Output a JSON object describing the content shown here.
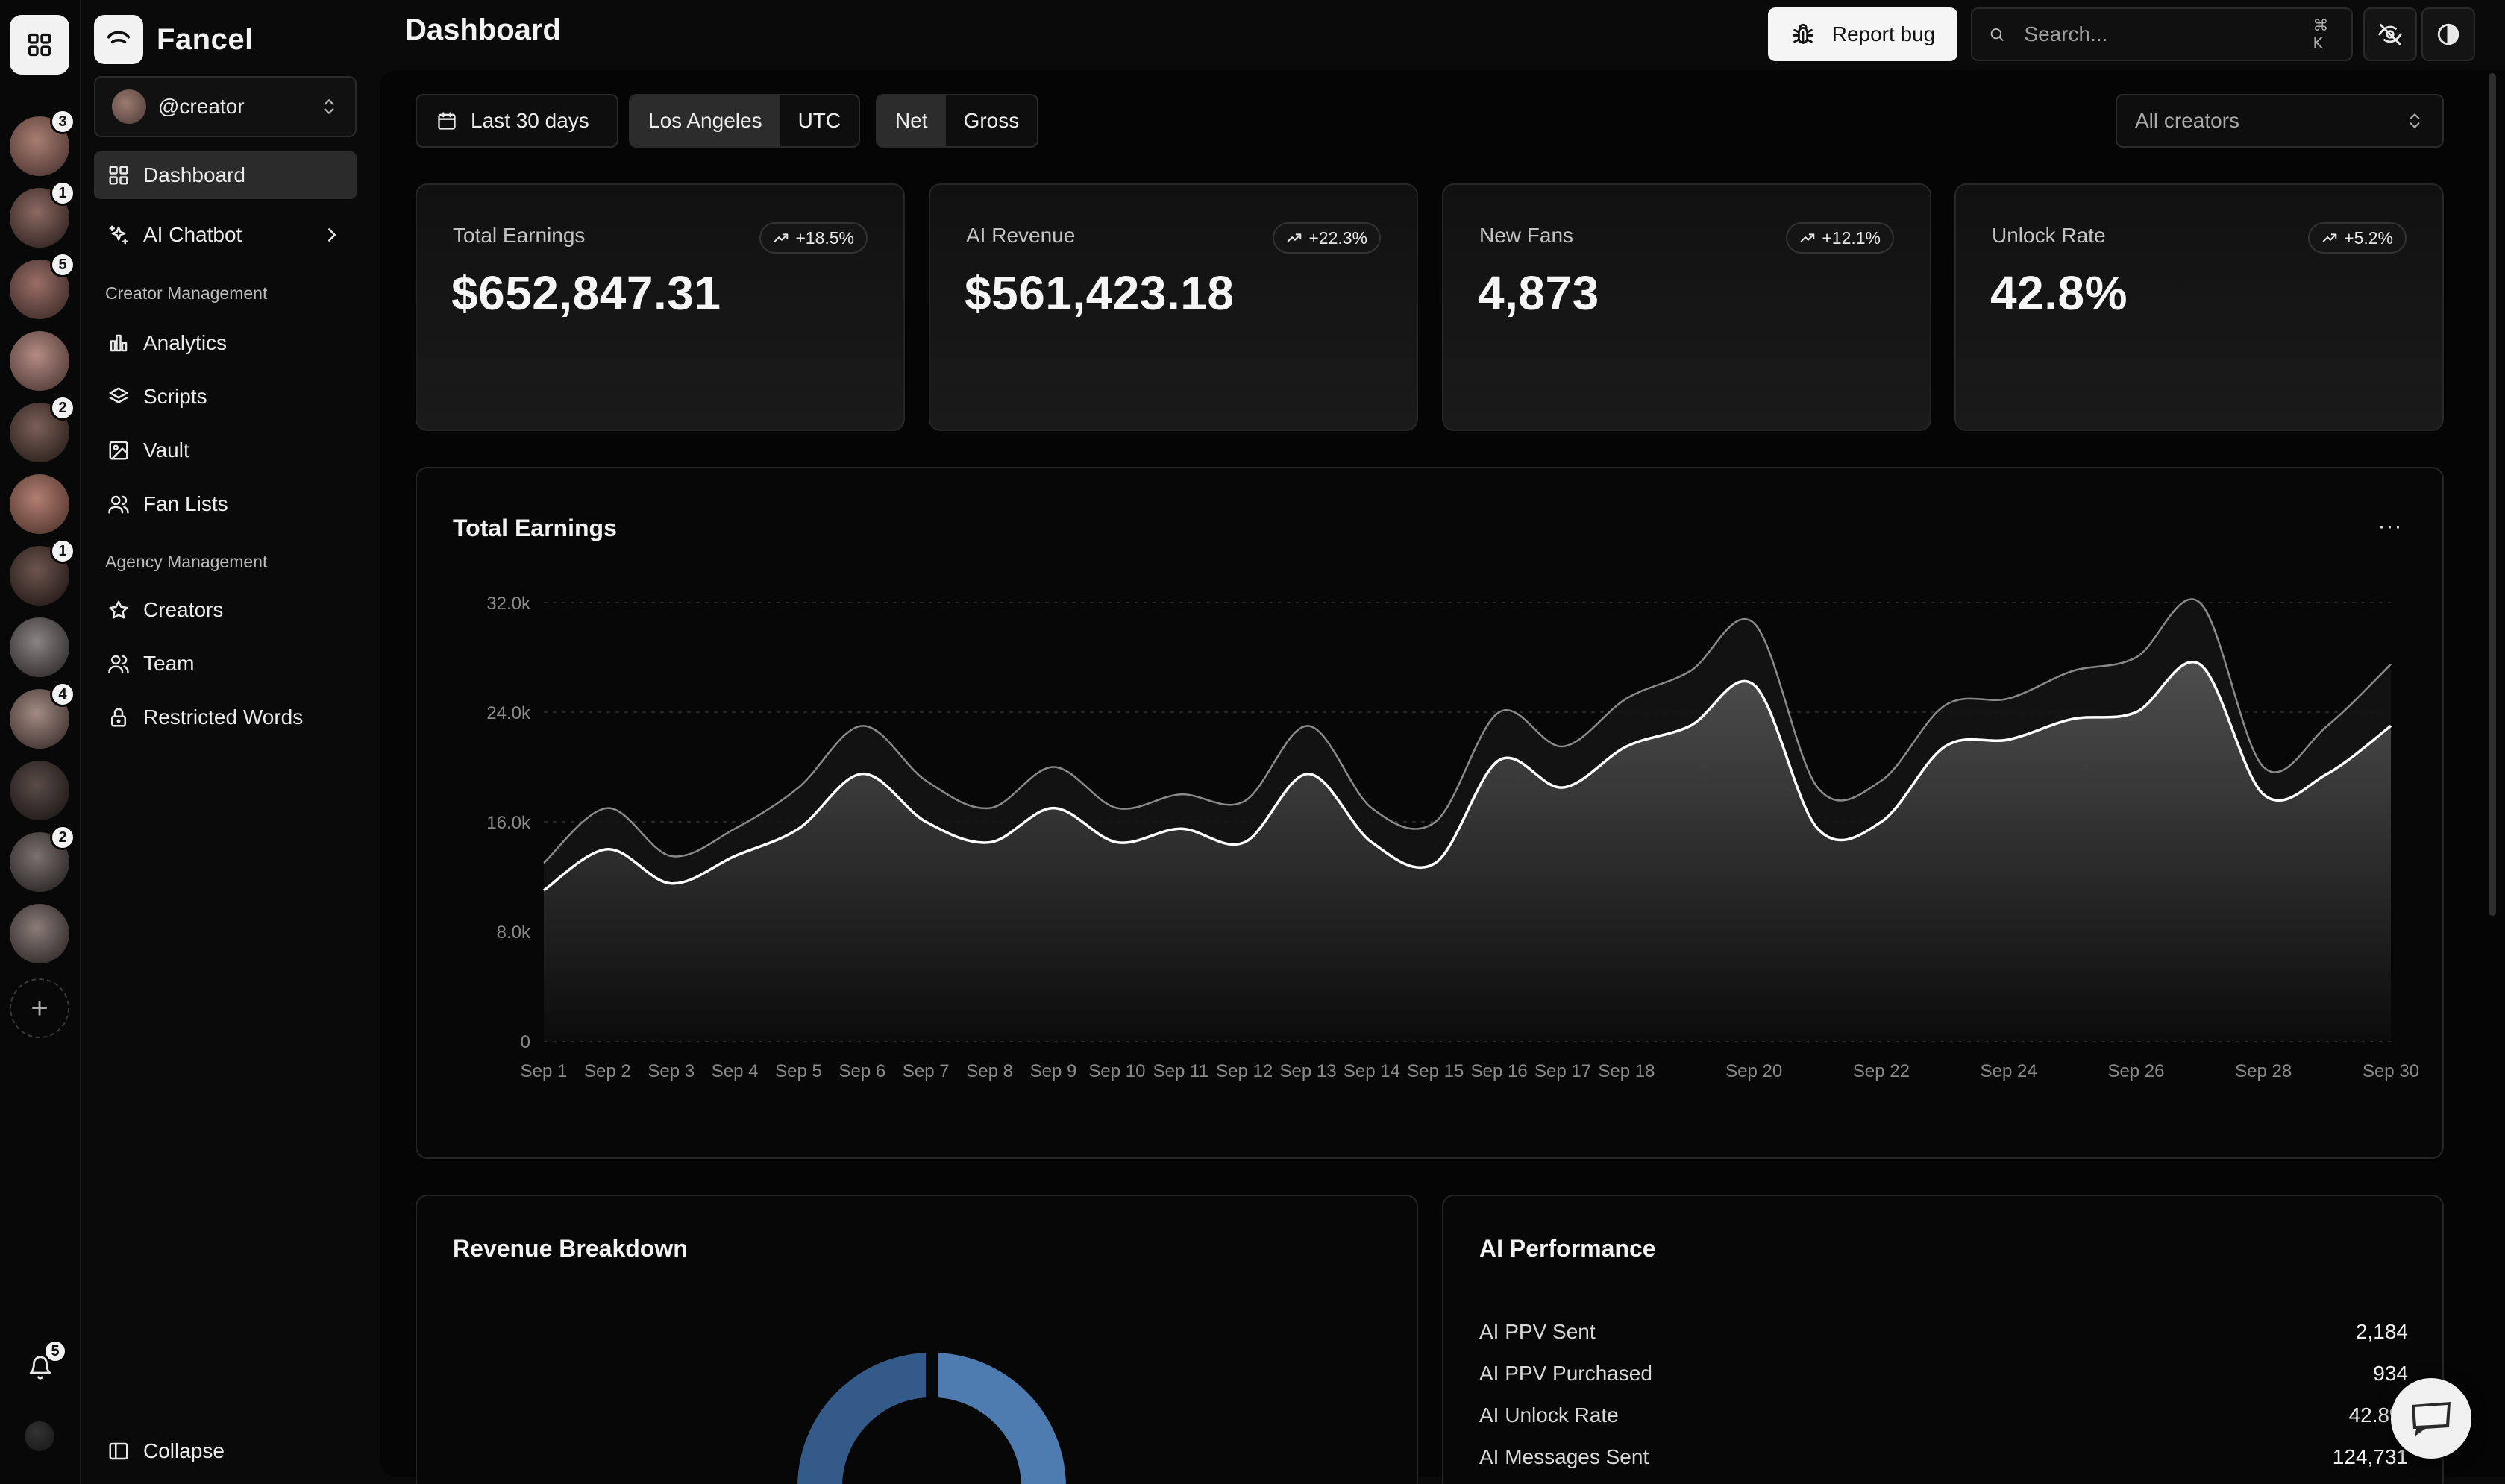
{
  "rail": {
    "avatars": [
      {
        "badge": "3",
        "colors": [
          "#a87e72",
          "#5a403a"
        ]
      },
      {
        "badge": "1",
        "colors": [
          "#8d6a63",
          "#3c2c29"
        ]
      },
      {
        "badge": "5",
        "colors": [
          "#9a6e66",
          "#4a3431"
        ]
      },
      {
        "badge": "",
        "colors": [
          "#b48c84",
          "#5e4540"
        ]
      },
      {
        "badge": "2",
        "colors": [
          "#7c5f58",
          "#342723"
        ]
      },
      {
        "badge": "",
        "colors": [
          "#b27f70",
          "#5f3f37"
        ]
      },
      {
        "badge": "1",
        "colors": [
          "#6e554f",
          "#2c211e"
        ]
      },
      {
        "badge": "",
        "colors": [
          "#8a8484",
          "#3b3737"
        ]
      },
      {
        "badge": "4",
        "colors": [
          "#a38a84",
          "#4b3d39"
        ]
      },
      {
        "badge": "",
        "colors": [
          "#5a4c48",
          "#251f1d"
        ]
      },
      {
        "badge": "2",
        "colors": [
          "#7c7270",
          "#332e2d"
        ]
      },
      {
        "badge": "",
        "colors": [
          "#8a7c78",
          "#3b3432"
        ]
      }
    ],
    "notifications_badge": "5"
  },
  "brand": {
    "name": "Fancel"
  },
  "account": {
    "handle": "@creator"
  },
  "nav": {
    "dashboard": "Dashboard",
    "ai_chatbot": "AI Chatbot",
    "section_creator": "Creator Management",
    "analytics": "Analytics",
    "scripts": "Scripts",
    "vault": "Vault",
    "fan_lists": "Fan Lists",
    "section_agency": "Agency Management",
    "creators": "Creators",
    "team": "Team",
    "restricted_words": "Restricted Words",
    "collapse": "Collapse"
  },
  "header": {
    "title": "Dashboard",
    "report_bug": "Report bug",
    "search_placeholder": "Search...",
    "search_shortcut": "⌘ K"
  },
  "filters": {
    "date_range": "Last 30 days",
    "timezone_options": [
      "Los Angeles",
      "UTC"
    ],
    "timezone_selected": "Los Angeles",
    "revenue_mode_options": [
      "Net",
      "Gross"
    ],
    "revenue_mode_selected": "Net",
    "creators_select": "All creators"
  },
  "stats": [
    {
      "label": "Total Earnings",
      "value": "$652,847.31",
      "delta": "+18.5%"
    },
    {
      "label": "AI Revenue",
      "value": "$561,423.18",
      "delta": "+22.3%"
    },
    {
      "label": "New Fans",
      "value": "4,873",
      "delta": "+12.1%"
    },
    {
      "label": "Unlock Rate",
      "value": "42.8%",
      "delta": "+5.2%"
    }
  ],
  "earnings_card": {
    "title": "Total Earnings",
    "more_label": "···"
  },
  "chart_data": {
    "type": "area",
    "title": "Total Earnings",
    "ylim": [
      0,
      32000
    ],
    "y_ticks": [
      "0",
      "8.0k",
      "16.0k",
      "24.0k",
      "32.0k"
    ],
    "y_tick_values": [
      0,
      8000,
      16000,
      24000,
      32000
    ],
    "grid": true,
    "categories": [
      "Sep 1",
      "Sep 2",
      "Sep 3",
      "Sep 4",
      "Sep 5",
      "Sep 6",
      "Sep 7",
      "Sep 8",
      "Sep 9",
      "Sep 10",
      "Sep 11",
      "Sep 12",
      "Sep 13",
      "Sep 14",
      "Sep 15",
      "Sep 16",
      "Sep 17",
      "Sep 18",
      "Sep 19",
      "Sep 20",
      "Sep 21",
      "Sep 22",
      "Sep 23",
      "Sep 24",
      "Sep 25",
      "Sep 26",
      "Sep 27",
      "Sep 28",
      "Sep 29",
      "Sep 30"
    ],
    "x_tick_labels": [
      "Sep 1",
      "Sep 2",
      "Sep 3",
      "Sep 4",
      "Sep 5",
      "Sep 6",
      "Sep 7",
      "Sep 8",
      "Sep 9",
      "Sep 10",
      "Sep 11",
      "Sep 12",
      "Sep 13",
      "Sep 14",
      "Sep 15",
      "Sep 16",
      "Sep 17",
      "Sep 18",
      "Sep 20",
      "Sep 22",
      "Sep 24",
      "Sep 26",
      "Sep 28",
      "Sep 30"
    ],
    "series": [
      {
        "values": [
          13000,
          17000,
          13500,
          15500,
          18500,
          23000,
          19000,
          17000,
          20000,
          17000,
          18000,
          17500,
          23000,
          17000,
          16000,
          24000,
          21500,
          25000,
          27000,
          30500,
          18500,
          19000,
          24500,
          25000,
          27000,
          28000,
          32000,
          20000,
          23000,
          27500
        ]
      },
      {
        "values": [
          11000,
          14000,
          11500,
          13500,
          15500,
          19500,
          16000,
          14500,
          17000,
          14500,
          15500,
          14500,
          19500,
          14500,
          13000,
          20500,
          18500,
          21500,
          23000,
          26000,
          15500,
          16000,
          21500,
          22000,
          23500,
          24000,
          27500,
          18000,
          19500,
          23000
        ]
      }
    ],
    "colors": {
      "upper_line": "#8a8a8a",
      "lower_line": "#ffffff",
      "area_top": "#4e4e4e",
      "area_bottom": "#0c0c0c"
    }
  },
  "revenue_breakdown": {
    "title": "Revenue Breakdown"
  },
  "ai_performance": {
    "title": "AI Performance",
    "rows": [
      {
        "label": "AI PPV Sent",
        "value": "2,184"
      },
      {
        "label": "AI PPV Purchased",
        "value": "934"
      },
      {
        "label": "AI Unlock Rate",
        "value": "42.8%"
      },
      {
        "label": "AI Messages Sent",
        "value": "124,731"
      }
    ]
  },
  "accent_colors": {
    "donut_dark": "#345a8a",
    "donut_light": "#4f7cb0"
  }
}
